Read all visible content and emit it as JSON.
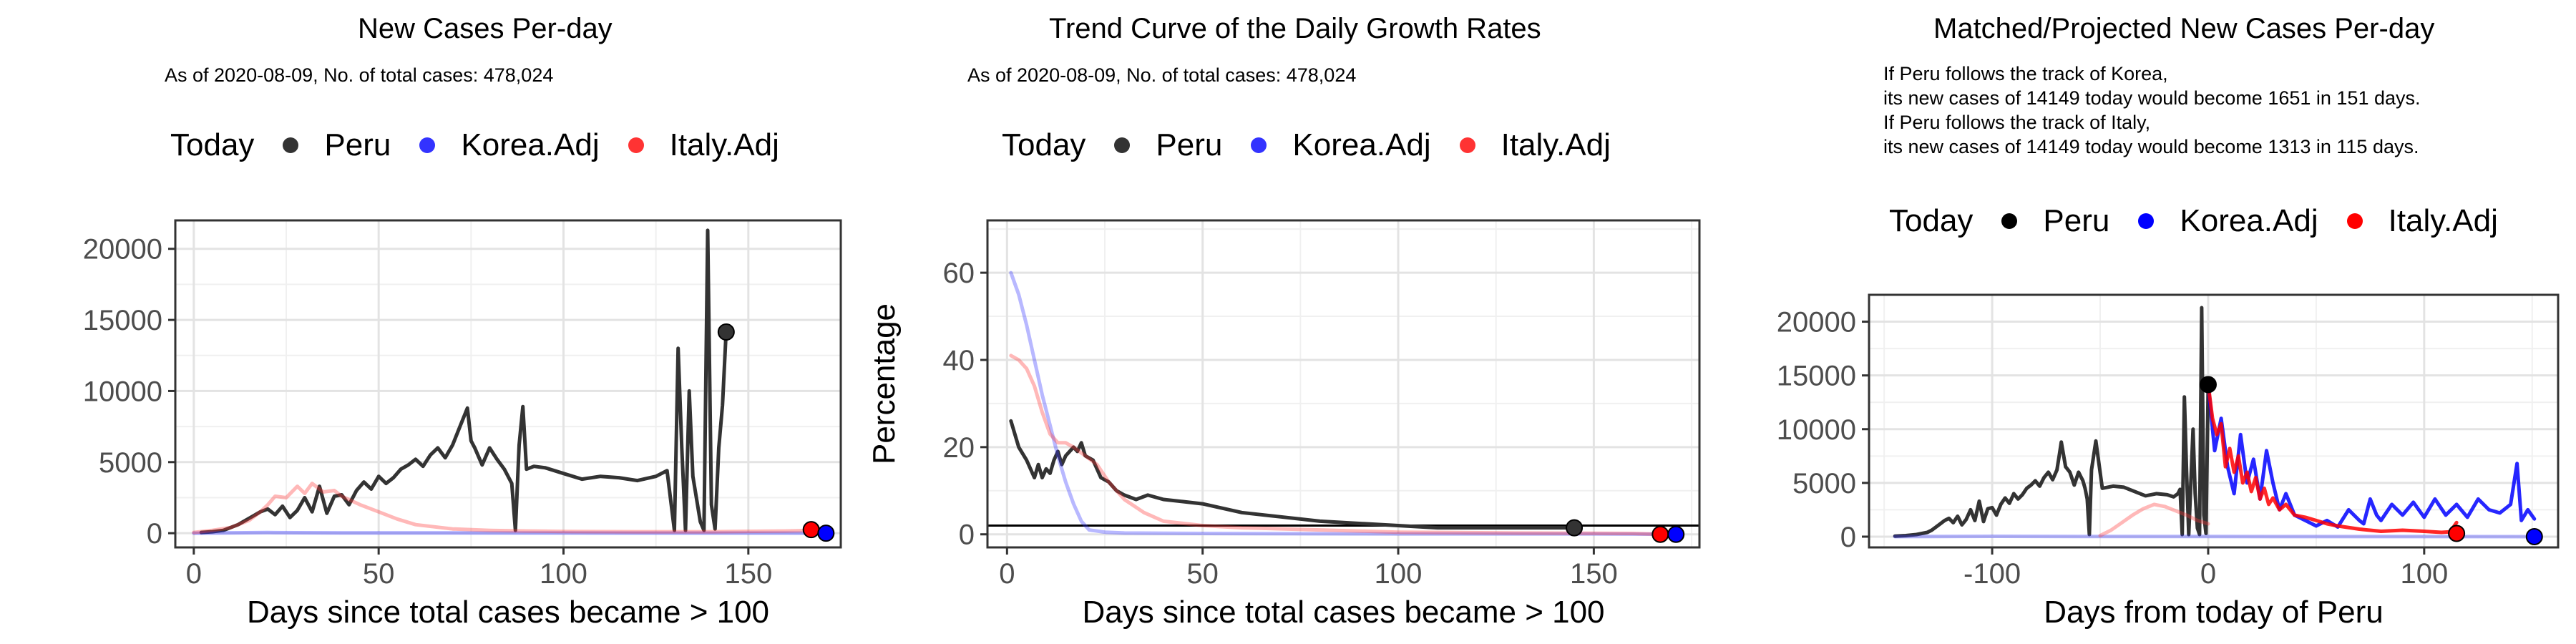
{
  "charts": [
    {
      "title": "New Cases Per-day",
      "subtitle": "As of 2020-08-09, No. of total cases: 478,024",
      "legend": {
        "title": "Today",
        "entries": [
          "Peru",
          "Korea.Adj",
          "Italy.Adj"
        ]
      },
      "xlabel": "Days since total cases became > 100",
      "ylabel": ""
    },
    {
      "title": "Trend Curve of the Daily Growth Rates",
      "subtitle": "As of 2020-08-09, No. of total cases: 478,024",
      "legend": {
        "title": "Today",
        "entries": [
          "Peru",
          "Korea.Adj",
          "Italy.Adj"
        ]
      },
      "xlabel": "Days since total cases became > 100",
      "ylabel": "Percentage"
    },
    {
      "title": "Matched/Projected New Cases Per-day",
      "subtitle_lines": [
        "If Peru follows the track of Korea,",
        "its new cases of 14149 today would become 1651 in 151 days.",
        "If Peru follows the track of Italy,",
        "its new cases of 14149 today would become 1313 in 115 days."
      ],
      "legend": {
        "title": "Today",
        "entries": [
          "Peru",
          "Korea.Adj",
          "Italy.Adj"
        ]
      },
      "xlabel": "Days from today of Peru",
      "ylabel": ""
    }
  ],
  "colors": {
    "peru": "#333333",
    "korea": "#3333ff",
    "italy": "#ff3333",
    "peru_dot": "#000000",
    "korea_dot": "#0000ff",
    "italy_dot": "#ff0000"
  },
  "chart_data": [
    {
      "type": "line",
      "title": "New Cases Per-day",
      "xlabel": "Days since total cases became > 100",
      "ylabel": "",
      "xlim": [
        -5,
        175
      ],
      "ylim": [
        -1000,
        22000
      ],
      "xticks": [
        0,
        50,
        100,
        150
      ],
      "yticks": [
        0,
        5000,
        10000,
        15000,
        20000
      ],
      "grid": true,
      "legend_position": "top",
      "series": [
        {
          "name": "Peru",
          "color": "#333333",
          "width": 5,
          "opacity": 1,
          "x": [
            2,
            5,
            8,
            10,
            12,
            14,
            16,
            18,
            20,
            22,
            24,
            26,
            28,
            30,
            32,
            34,
            36,
            38,
            40,
            42,
            44,
            46,
            48,
            50,
            52,
            54,
            56,
            58,
            60,
            62,
            64,
            66,
            68,
            70,
            72,
            74,
            75,
            76,
            78,
            80,
            82,
            84,
            86,
            87,
            88,
            89,
            90,
            92,
            95,
            100,
            105,
            110,
            115,
            120,
            125,
            128,
            130,
            131,
            132,
            133,
            134,
            135,
            137,
            138,
            139,
            140,
            141,
            142,
            143,
            144
          ],
          "y": [
            50,
            100,
            200,
            400,
            600,
            900,
            1200,
            1500,
            1700,
            1300,
            1900,
            1100,
            1600,
            2500,
            1500,
            3300,
            1400,
            2600,
            2700,
            2000,
            3000,
            3600,
            3100,
            4000,
            3500,
            3900,
            4500,
            4800,
            5200,
            4700,
            5500,
            6000,
            5300,
            6200,
            7500,
            8800,
            6500,
            6000,
            4800,
            6000,
            5200,
            4500,
            3500,
            200,
            6200,
            8900,
            4500,
            4700,
            4600,
            4200,
            3800,
            4000,
            3900,
            3700,
            4000,
            4400,
            200,
            13000,
            6000,
            200,
            10000,
            4000,
            800,
            200,
            21300,
            2000,
            300,
            6000,
            9000,
            14200
          ]
        },
        {
          "name": "Korea.Adj",
          "color": "#3333ff",
          "width": 5,
          "opacity": 0.4,
          "x": [
            0,
            20,
            40,
            60,
            80,
            100,
            120,
            140,
            160,
            171
          ],
          "y": [
            0,
            40,
            20,
            20,
            10,
            10,
            5,
            5,
            5,
            0
          ]
        },
        {
          "name": "Italy.Adj",
          "color": "#ff3333",
          "width": 5,
          "opacity": 0.35,
          "x": [
            0,
            5,
            10,
            15,
            18,
            20,
            22,
            25,
            28,
            30,
            32,
            35,
            38,
            40,
            45,
            50,
            55,
            60,
            70,
            80,
            90,
            100,
            120,
            140,
            160,
            168
          ],
          "y": [
            50,
            200,
            400,
            900,
            1500,
            2000,
            2600,
            2500,
            3300,
            2800,
            3500,
            2900,
            3000,
            2600,
            2000,
            1500,
            1000,
            600,
            300,
            200,
            150,
            120,
            100,
            100,
            150,
            200
          ]
        }
      ],
      "points": [
        {
          "name": "Peru",
          "x": 144,
          "y": 14149,
          "color": "#333333"
        },
        {
          "name": "Italy.Adj",
          "x": 167,
          "y": 250,
          "color": "#ff0000"
        },
        {
          "name": "Korea.Adj",
          "x": 171,
          "y": 0,
          "color": "#0000ff"
        }
      ]
    },
    {
      "type": "line",
      "title": "Trend Curve of the Daily Growth Rates",
      "xlabel": "Days since total cases became > 100",
      "ylabel": "Percentage",
      "xlim": [
        -5,
        177
      ],
      "ylim": [
        -3,
        72
      ],
      "xticks": [
        0,
        50,
        100,
        150
      ],
      "yticks": [
        0,
        20,
        40,
        60
      ],
      "hline": 2,
      "grid": true,
      "legend_position": "top",
      "series": [
        {
          "name": "Peru",
          "color": "#333333",
          "width": 5,
          "opacity": 1,
          "x": [
            1,
            3,
            5,
            7,
            8,
            9,
            10,
            11,
            12,
            13,
            14,
            15,
            16,
            17,
            18,
            19,
            20,
            22,
            24,
            26,
            28,
            30,
            33,
            36,
            40,
            45,
            50,
            55,
            60,
            70,
            80,
            90,
            100,
            110,
            120,
            130,
            140,
            145
          ],
          "y": [
            26,
            20,
            17,
            13,
            16,
            13,
            15,
            14,
            17,
            19,
            16,
            18,
            19,
            20,
            19,
            21,
            18,
            17,
            13,
            12,
            10,
            9,
            8,
            9,
            8,
            7.5,
            7,
            6,
            5,
            4,
            3,
            2.5,
            2,
            1.5,
            1.5,
            1.5,
            1.5,
            1.5
          ]
        },
        {
          "name": "Korea.Adj",
          "color": "#3333ff",
          "width": 5,
          "opacity": 0.35,
          "x": [
            1,
            3,
            5,
            7,
            9,
            11,
            13,
            15,
            17,
            19,
            21,
            25,
            30,
            50,
            100,
            150,
            170
          ],
          "y": [
            60,
            55,
            48,
            40,
            32,
            25,
            18,
            12,
            7,
            3,
            1,
            0.5,
            0.3,
            0.2,
            0.1,
            0.1,
            0
          ]
        },
        {
          "name": "Italy.Adj",
          "color": "#ff3333",
          "width": 5,
          "opacity": 0.35,
          "x": [
            1,
            3,
            5,
            7,
            9,
            11,
            13,
            15,
            17,
            20,
            23,
            26,
            30,
            35,
            40,
            50,
            60,
            80,
            100,
            130,
            160,
            168
          ],
          "y": [
            41,
            40,
            38,
            34,
            28,
            23,
            21,
            21,
            20,
            18,
            16,
            12,
            8,
            5,
            3,
            2,
            1.5,
            1,
            0.5,
            0.3,
            0.2,
            0
          ]
        }
      ],
      "points": [
        {
          "name": "Peru",
          "x": 145,
          "y": 1.5,
          "color": "#333333"
        },
        {
          "name": "Italy.Adj",
          "x": 167,
          "y": 0,
          "color": "#ff0000"
        },
        {
          "name": "Korea.Adj",
          "x": 171,
          "y": 0,
          "color": "#0000ff"
        }
      ]
    },
    {
      "type": "line",
      "title": "Matched/Projected New Cases Per-day",
      "xlabel": "Days from today of Peru",
      "ylabel": "",
      "xlim": [
        -157,
        162
      ],
      "ylim": [
        -1000,
        22500
      ],
      "xticks": [
        -100,
        0,
        100
      ],
      "yticks": [
        0,
        5000,
        10000,
        15000,
        20000
      ],
      "grid": true,
      "legend_position": "top",
      "series": [
        {
          "name": "Peru",
          "color": "#333333",
          "width": 5,
          "opacity": 1,
          "x": [
            -145,
            -140,
            -135,
            -130,
            -128,
            -126,
            -124,
            -122,
            -120,
            -118,
            -116,
            -114,
            -112,
            -110,
            -108,
            -106,
            -104,
            -102,
            -100,
            -98,
            -96,
            -94,
            -92,
            -90,
            -88,
            -86,
            -84,
            -82,
            -80,
            -78,
            -76,
            -74,
            -72,
            -70,
            -69,
            -68,
            -66,
            -64,
            -62,
            -60,
            -58,
            -57,
            -56,
            -55,
            -54,
            -52,
            -49,
            -44,
            -39,
            -34,
            -29,
            -24,
            -19,
            -16,
            -14,
            -13,
            -12,
            -11,
            -10,
            -9,
            -7,
            -6,
            -5,
            -4,
            -3,
            -2,
            -1,
            0
          ],
          "y": [
            50,
            100,
            200,
            400,
            600,
            900,
            1200,
            1500,
            1700,
            1300,
            1900,
            1100,
            1600,
            2500,
            1500,
            3300,
            1400,
            2600,
            2700,
            2000,
            3000,
            3600,
            3100,
            4000,
            3500,
            3900,
            4500,
            4800,
            5200,
            4700,
            5500,
            6000,
            5300,
            6200,
            7500,
            8800,
            6500,
            6000,
            4800,
            6000,
            5200,
            4500,
            3500,
            200,
            6200,
            8900,
            4500,
            4700,
            4600,
            4200,
            3800,
            4000,
            3900,
            3700,
            4000,
            4400,
            200,
            13000,
            6000,
            200,
            10000,
            4000,
            800,
            200,
            21300,
            2000,
            300,
            14149
          ]
        },
        {
          "name": "Korea.Adj",
          "color": "#3333ff",
          "width": 5,
          "opacity": 0.35,
          "x": [
            -145,
            -100,
            -60,
            -30,
            0,
            50,
            100,
            151
          ],
          "y": [
            0,
            30,
            20,
            15,
            10,
            5,
            5,
            0
          ]
        },
        {
          "name": "Italy.Adj",
          "color": "#ff3333",
          "width": 5,
          "opacity": 0.35,
          "x": [
            -50,
            -45,
            -40,
            -35,
            -30,
            -25,
            -20,
            -15,
            -10,
            -5,
            0
          ],
          "y": [
            100,
            600,
            1300,
            2000,
            2600,
            3000,
            2800,
            2400,
            2000,
            1500,
            1200
          ]
        },
        {
          "name": "Korea.Adj projected",
          "color": "#0000ff",
          "width": 5,
          "opacity": 0.85,
          "x": [
            0,
            3,
            6,
            9,
            12,
            15,
            18,
            21,
            24,
            27,
            30,
            33,
            36,
            40,
            45,
            50,
            55,
            60,
            65,
            70,
            72,
            75,
            78,
            80,
            85,
            90,
            95,
            100,
            105,
            110,
            115,
            120,
            125,
            130,
            135,
            140,
            143,
            145,
            148,
            151
          ],
          "y": [
            14149,
            8000,
            11000,
            6500,
            4000,
            9500,
            5000,
            7200,
            3500,
            8000,
            5000,
            2500,
            4000,
            2000,
            1500,
            1000,
            1500,
            900,
            2500,
            1500,
            1200,
            3500,
            2000,
            1500,
            3000,
            2000,
            3200,
            1800,
            3500,
            2000,
            3000,
            1800,
            3500,
            2500,
            2200,
            3000,
            6800,
            1500,
            2500,
            1651
          ]
        },
        {
          "name": "Italy.Adj projected",
          "color": "#ff0000",
          "width": 5,
          "opacity": 0.85,
          "x": [
            0,
            2,
            4,
            6,
            8,
            10,
            12,
            14,
            16,
            18,
            20,
            22,
            24,
            26,
            28,
            30,
            33,
            36,
            40,
            45,
            50,
            55,
            60,
            70,
            80,
            90,
            100,
            108,
            112,
            115
          ],
          "y": [
            14149,
            11000,
            9500,
            10500,
            6500,
            8200,
            6000,
            7500,
            5000,
            6000,
            4200,
            5500,
            3500,
            4500,
            3000,
            3600,
            2500,
            3000,
            2000,
            1800,
            1500,
            1200,
            1000,
            700,
            500,
            600,
            500,
            400,
            450,
            1313
          ]
        }
      ],
      "points": [
        {
          "name": "Peru",
          "x": 0,
          "y": 14149,
          "color": "#000000"
        },
        {
          "name": "Italy.Adj",
          "x": 115,
          "y": 300,
          "color": "#ff0000"
        },
        {
          "name": "Korea.Adj",
          "x": 151,
          "y": 0,
          "color": "#0000ff"
        }
      ]
    }
  ]
}
